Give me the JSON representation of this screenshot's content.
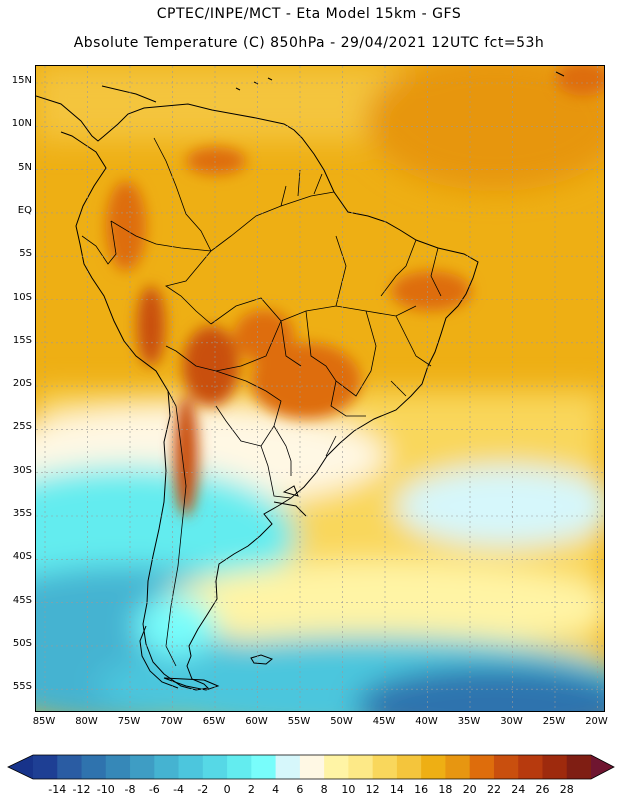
{
  "header": {
    "line1": "CPTEC/INPE/MCT -  Eta Model 15km - GFS",
    "line2": "Absolute Temperature (C) 850hPa - 29/04/2021 12UTC fct=53h"
  },
  "map": {
    "region": "South America",
    "lat_labels": [
      "15N",
      "10N",
      "5N",
      "EQ",
      "5S",
      "10S",
      "15S",
      "20S",
      "25S",
      "30S",
      "35S",
      "40S",
      "45S",
      "50S",
      "55S"
    ],
    "lon_labels": [
      "85W",
      "80W",
      "75W",
      "70W",
      "65W",
      "60W",
      "55W",
      "50W",
      "45W",
      "40W",
      "35W",
      "30W",
      "25W",
      "20W"
    ]
  },
  "colorbar": {
    "labels": [
      "-14",
      "-12",
      "-10",
      "-8",
      "-6",
      "-4",
      "-2",
      "0",
      "2",
      "4",
      "6",
      "8",
      "10",
      "12",
      "14",
      "16",
      "18",
      "20",
      "22",
      "24",
      "26",
      "28"
    ],
    "colors": [
      "#1e3f94",
      "#2a5ca3",
      "#2f73ae",
      "#3688b8",
      "#3e9dc4",
      "#45b3d1",
      "#4cc6dd",
      "#56d8e6",
      "#63ecef",
      "#78fdfb",
      "#d6f7fb",
      "#fff8e4",
      "#fff4a5",
      "#fde987",
      "#f9d75c",
      "#f4c53c",
      "#eeaf14",
      "#e79611",
      "#de6d0c",
      "#c94f0e",
      "#b73a0e",
      "#9e2a0d",
      "#7f1e13"
    ]
  }
}
